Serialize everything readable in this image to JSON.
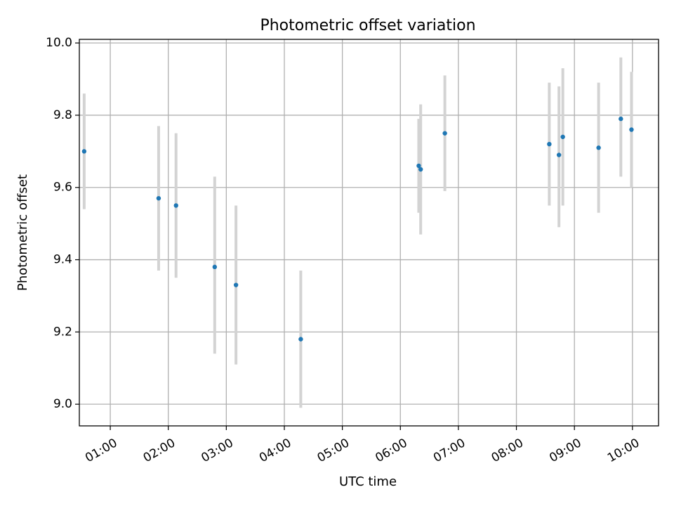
{
  "chart_data": {
    "type": "scatter",
    "title": "Photometric offset variation",
    "xlabel": "UTC time",
    "ylabel": "Photometric offset",
    "x_tick_labels": [
      "01:00",
      "02:00",
      "03:00",
      "04:00",
      "05:00",
      "06:00",
      "07:00",
      "08:00",
      "09:00",
      "10:00"
    ],
    "y_tick_labels": [
      "9.0",
      "9.2",
      "9.4",
      "9.6",
      "9.8",
      "10.0"
    ],
    "xlim": [
      "00:28",
      "10:27"
    ],
    "ylim": [
      8.94,
      10.01
    ],
    "grid": true,
    "series": [
      {
        "color": "#1f77b4",
        "error_bar_color": "#d3d3d3",
        "points": [
          {
            "time": "00:33",
            "y": 9.7,
            "err_low": 9.54,
            "err_high": 9.86
          },
          {
            "time": "01:50",
            "y": 9.57,
            "err_low": 9.37,
            "err_high": 9.77
          },
          {
            "time": "02:08",
            "y": 9.55,
            "err_low": 9.35,
            "err_high": 9.75
          },
          {
            "time": "02:48",
            "y": 9.38,
            "err_low": 9.14,
            "err_high": 9.63
          },
          {
            "time": "03:10",
            "y": 9.33,
            "err_low": 9.11,
            "err_high": 9.55
          },
          {
            "time": "04:17",
            "y": 9.18,
            "err_low": 8.99,
            "err_high": 9.37
          },
          {
            "time": "06:19",
            "y": 9.66,
            "err_low": 9.53,
            "err_high": 9.79
          },
          {
            "time": "06:21",
            "y": 9.65,
            "err_low": 9.47,
            "err_high": 9.83
          },
          {
            "time": "06:46",
            "y": 9.75,
            "err_low": 9.59,
            "err_high": 9.91
          },
          {
            "time": "08:34",
            "y": 9.72,
            "err_low": 9.55,
            "err_high": 9.89
          },
          {
            "time": "08:44",
            "y": 9.69,
            "err_low": 9.49,
            "err_high": 9.88
          },
          {
            "time": "08:48",
            "y": 9.74,
            "err_low": 9.55,
            "err_high": 9.93
          },
          {
            "time": "09:25",
            "y": 9.71,
            "err_low": 9.53,
            "err_high": 9.89
          },
          {
            "time": "09:48",
            "y": 9.79,
            "err_low": 9.63,
            "err_high": 9.96
          },
          {
            "time": "09:59",
            "y": 9.76,
            "err_low": 9.6,
            "err_high": 9.92
          }
        ]
      }
    ]
  }
}
